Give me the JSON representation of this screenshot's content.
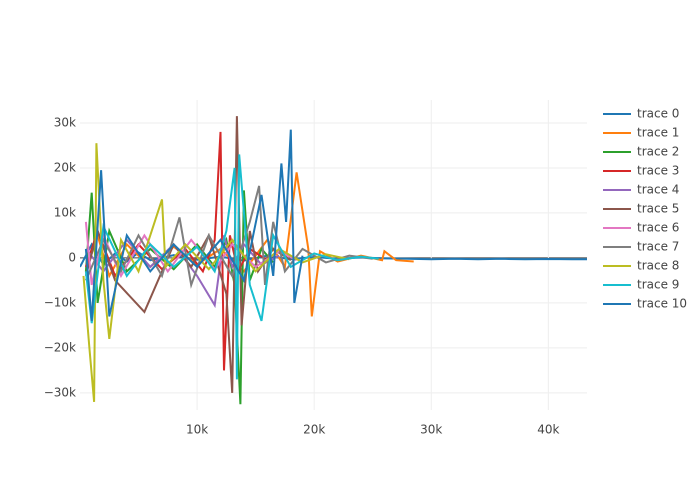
{
  "chart_data": {
    "type": "line",
    "xlim": [
      0,
      43300
    ],
    "ylim": [
      -33800,
      35100
    ],
    "xticks": [
      {
        "value": 10000,
        "label": "10k"
      },
      {
        "value": 20000,
        "label": "20k"
      },
      {
        "value": 30000,
        "label": "30k"
      },
      {
        "value": 40000,
        "label": "40k"
      }
    ],
    "yticks": [
      {
        "value": -30000,
        "label": "−30k"
      },
      {
        "value": -20000,
        "label": "−20k"
      },
      {
        "value": -10000,
        "label": "−10k"
      },
      0,
      {
        "value": 10000,
        "label": "10k"
      },
      {
        "value": 20000,
        "label": "20k"
      },
      {
        "value": 30000,
        "label": "30k"
      }
    ],
    "grid": true,
    "legend": "right",
    "series": [
      {
        "name": "trace 0",
        "color": "#1f77b4",
        "x": [
          0,
          1000,
          2000,
          3000,
          4000,
          5000,
          6000,
          8000,
          10000,
          12000,
          14000,
          16000,
          18000,
          20000,
          22000,
          24000,
          26000,
          28000,
          30000,
          32000,
          34000,
          36000,
          38000,
          40000,
          42000,
          43300
        ],
        "values": [
          -2000,
          3000,
          -1500,
          1000,
          -800,
          1200,
          -500,
          600,
          -400,
          300,
          -600,
          500,
          -300,
          200,
          -200,
          100,
          -100,
          -200,
          -300,
          -200,
          -300,
          -200,
          -300,
          -250,
          -300,
          -300
        ]
      },
      {
        "name": "trace 1",
        "color": "#ff7f0e",
        "x": [
          500,
          1500,
          2500,
          4000,
          6000,
          8000,
          10000,
          12000,
          14000,
          16000,
          17500,
          18500,
          19500,
          19800,
          20500,
          22000,
          24000,
          25800,
          26000,
          27000,
          28500
        ],
        "values": [
          -3000,
          5000,
          -4000,
          3000,
          -2000,
          2500,
          -1500,
          2000,
          -3000,
          4000,
          -2000,
          19000,
          2000,
          -13000,
          1500,
          -800,
          500,
          -500,
          1500,
          -500,
          -800
        ]
      },
      {
        "name": "trace 2",
        "color": "#2ca02c",
        "x": [
          500,
          1000,
          1500,
          2500,
          4000,
          6000,
          8000,
          10000,
          11500,
          12500,
          13200,
          13700,
          14000,
          14500,
          15500,
          16500
        ],
        "values": [
          -3000,
          14500,
          -10000,
          6000,
          -3000,
          2000,
          -2500,
          3000,
          -2000,
          4000,
          -6000,
          -32500,
          15000,
          -5000,
          2000,
          -1000
        ]
      },
      {
        "name": "trace 3",
        "color": "#d62728",
        "x": [
          500,
          1500,
          3000,
          5000,
          7000,
          9000,
          10500,
          11500,
          12000,
          12300,
          12800,
          13500,
          14500,
          16000
        ],
        "values": [
          -2000,
          6000,
          -4000,
          3000,
          -2500,
          2000,
          -3000,
          4000,
          28000,
          -25000,
          5000,
          -3000,
          2000,
          -500
        ]
      },
      {
        "name": "trace 4",
        "color": "#9467bd",
        "x": [
          500,
          2000,
          4000,
          6000,
          8000,
          10000,
          11500,
          12300,
          13000,
          14000,
          15500,
          17000
        ],
        "values": [
          2000,
          -3000,
          4000,
          -2000,
          3000,
          -4000,
          -10500,
          5000,
          -2000,
          3000,
          -1500,
          500
        ]
      },
      {
        "name": "trace 5",
        "color": "#8c564b",
        "x": [
          500,
          1500,
          3000,
          5500,
          8000,
          9500,
          11000,
          12500,
          13000,
          13400,
          13800,
          14500,
          15200,
          16500,
          18000
        ],
        "values": [
          -4000,
          6000,
          -5000,
          -12000,
          3000,
          -2000,
          5000,
          -8000,
          -30000,
          31500,
          -15000,
          6000,
          -3000,
          2000,
          -500
        ]
      },
      {
        "name": "trace 6",
        "color": "#e377c2",
        "x": [
          500,
          1000,
          2000,
          3500,
          5500,
          7500,
          9500,
          11500,
          13000,
          15000,
          17000,
          18500
        ],
        "values": [
          8000,
          -6000,
          5000,
          -4000,
          5000,
          -3000,
          4000,
          -2500,
          3000,
          -2000,
          1500,
          -500
        ]
      },
      {
        "name": "trace 7",
        "color": "#7f7f7f",
        "x": [
          500,
          2000,
          3500,
          5000,
          7000,
          8500,
          9500,
          11000,
          13000,
          14500,
          15300,
          15800,
          16500,
          17500,
          19000,
          21000,
          23000,
          25000
        ],
        "values": [
          -5000,
          4000,
          -3000,
          5000,
          -4000,
          9000,
          -6000,
          5000,
          -4000,
          8000,
          16000,
          -6000,
          8000,
          -3000,
          2000,
          -1000,
          500,
          -200
        ]
      },
      {
        "name": "trace 8",
        "color": "#bcbd22",
        "x": [
          300,
          800,
          1200,
          1400,
          2000,
          2500,
          3500,
          5000,
          7000,
          7300,
          9000,
          11000,
          13000,
          15000,
          17000,
          19000,
          21000,
          23000
        ],
        "values": [
          -4000,
          -20000,
          -32000,
          25500,
          -5000,
          -18000,
          4000,
          -3000,
          13000,
          -2000,
          3000,
          -2500,
          4000,
          -3000,
          2000,
          -1000,
          800,
          -300
        ]
      },
      {
        "name": "trace 9",
        "color": "#17becf",
        "x": [
          500,
          1000,
          2000,
          4000,
          6000,
          8000,
          10000,
          11500,
          12500,
          13200,
          13400,
          13600,
          14500,
          15500,
          16500,
          18000,
          20000,
          22000,
          24000,
          25500
        ],
        "values": [
          -3000,
          -14500,
          7000,
          -4000,
          3000,
          -2000,
          2500,
          -3000,
          6000,
          20000,
          -27000,
          23000,
          -6000,
          -14000,
          5000,
          -2000,
          1000,
          -500,
          300,
          -200
        ]
      },
      {
        "name": "trace 10",
        "color": "#1f77b4",
        "x": [
          500,
          1000,
          1800,
          2500,
          4000,
          6000,
          8000,
          10000,
          12000,
          14000,
          15500,
          16500,
          17200,
          17600,
          18000,
          18300,
          19000
        ],
        "values": [
          2000,
          -14000,
          19500,
          -13000,
          5000,
          -3000,
          3000,
          -2000,
          4000,
          -5000,
          14000,
          -4000,
          21000,
          8000,
          28500,
          -10000,
          500
        ]
      }
    ]
  }
}
